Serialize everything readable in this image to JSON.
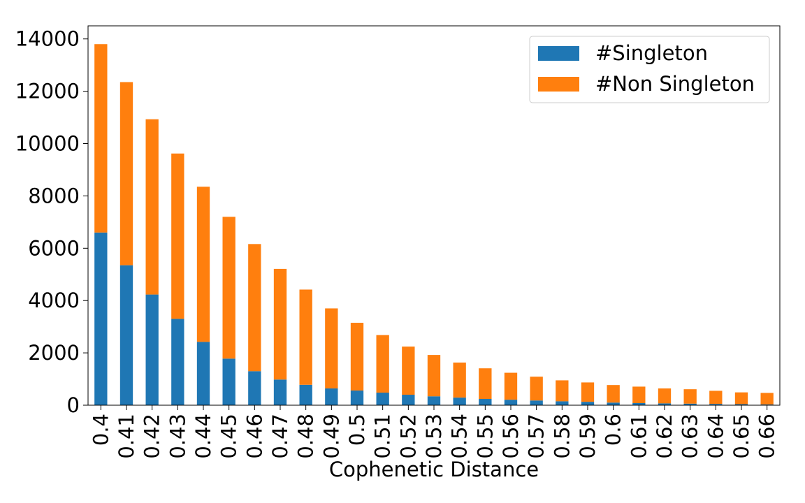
{
  "chart_data": {
    "type": "bar",
    "stacked": true,
    "categories": [
      "0.4",
      "0.41",
      "0.42",
      "0.43",
      "0.44",
      "0.45",
      "0.46",
      "0.47",
      "0.48",
      "0.49",
      "0.5",
      "0.51",
      "0.52",
      "0.53",
      "0.54",
      "0.55",
      "0.56",
      "0.57",
      "0.58",
      "0.59",
      "0.6",
      "0.61",
      "0.62",
      "0.63",
      "0.64",
      "0.65",
      "0.66"
    ],
    "series": [
      {
        "name": "#Singleton",
        "color": "#1f77b4",
        "values": [
          6600,
          5350,
          4230,
          3300,
          2420,
          1780,
          1300,
          980,
          780,
          640,
          560,
          480,
          400,
          340,
          290,
          240,
          210,
          180,
          150,
          130,
          100,
          80,
          70,
          60,
          50,
          40,
          30
        ]
      },
      {
        "name": "#Non Singleton",
        "color": "#ff7f0e",
        "values": [
          7200,
          7000,
          6700,
          6320,
          5930,
          5420,
          4860,
          4230,
          3640,
          3060,
          2590,
          2200,
          1840,
          1580,
          1340,
          1170,
          1030,
          910,
          800,
          740,
          670,
          630,
          570,
          550,
          500,
          450,
          440
        ]
      }
    ],
    "xlabel": "Cophenetic Distance",
    "ylabel": "",
    "ylim": [
      0,
      14500
    ],
    "yticks": [
      "0",
      "2000",
      "4000",
      "6000",
      "8000",
      "10000",
      "12000",
      "14000"
    ],
    "grid": false,
    "legend": "top-right"
  }
}
